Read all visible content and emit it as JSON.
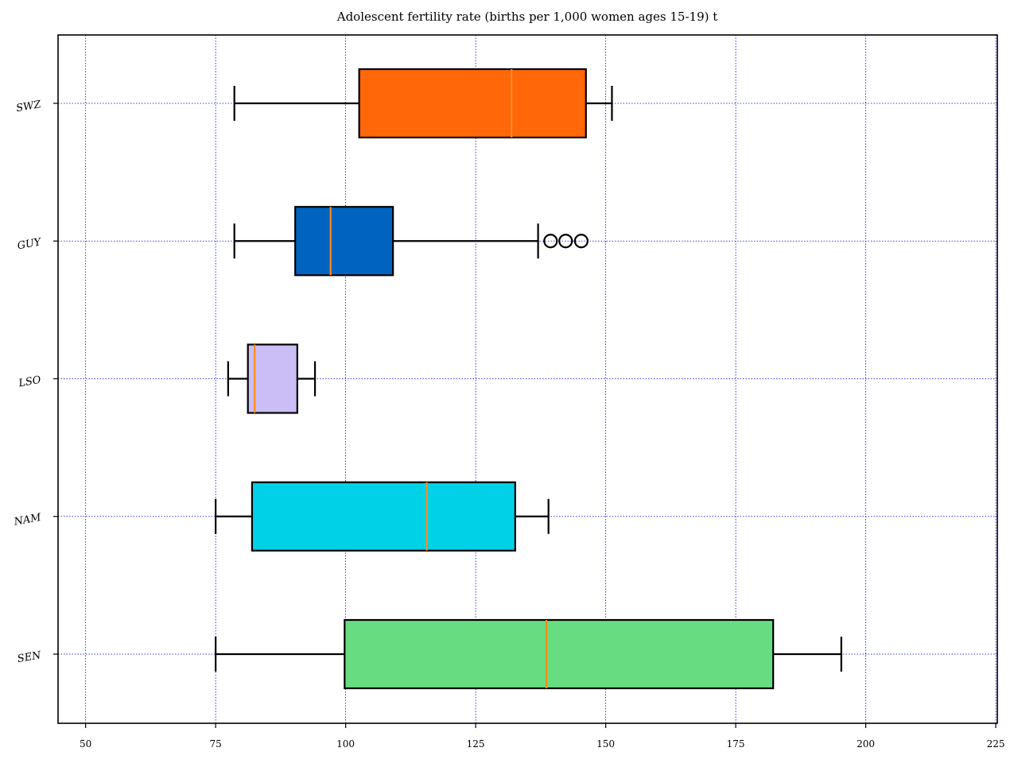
{
  "chart_data": {
    "type": "boxplot",
    "orientation": "horizontal",
    "title": "Adolescent fertility rate (births per 1,000 women ages 15-19) t",
    "xlabel": "",
    "ylabel": "",
    "xlim": [
      44.7,
      225.3
    ],
    "xticks": [
      50,
      75,
      100,
      125,
      150,
      175,
      200,
      225
    ],
    "xtick_labels": [
      "50",
      "75",
      "100",
      "125",
      "150",
      "175",
      "200",
      "225"
    ],
    "grid": true,
    "categories": [
      "SEN",
      "NAM",
      "LSO",
      "GUY",
      "SWZ"
    ],
    "series": [
      {
        "category": "SEN",
        "whisker_low": 75.0,
        "q1": 99.8,
        "median": 138.6,
        "q3": 182.2,
        "whisker_high": 195.3,
        "outliers": [],
        "color": "#68dc80"
      },
      {
        "category": "NAM",
        "whisker_low": 75.0,
        "q1": 82.0,
        "median": 115.6,
        "q3": 132.6,
        "whisker_high": 139.0,
        "outliers": [],
        "color": "#00d1e6"
      },
      {
        "category": "LSO",
        "whisker_low": 77.4,
        "q1": 81.2,
        "median": 82.5,
        "q3": 90.7,
        "whisker_high": 94.1,
        "outliers": [],
        "color": "#cbbdf5"
      },
      {
        "category": "GUY",
        "whisker_low": 78.6,
        "q1": 90.3,
        "median": 97.1,
        "q3": 109.1,
        "whisker_high": 137.0,
        "outliers": [
          139.4,
          142.3,
          145.3
        ],
        "color": "#0063c0"
      },
      {
        "category": "SWZ",
        "whisker_low": 78.6,
        "q1": 102.6,
        "median": 131.9,
        "q3": 146.2,
        "whisker_high": 151.2,
        "outliers": [],
        "color": "#ff6708"
      }
    ],
    "colors": {
      "median_line": "#ff8c1a",
      "grid": "#0000ee",
      "box_edge": "#000000"
    }
  }
}
